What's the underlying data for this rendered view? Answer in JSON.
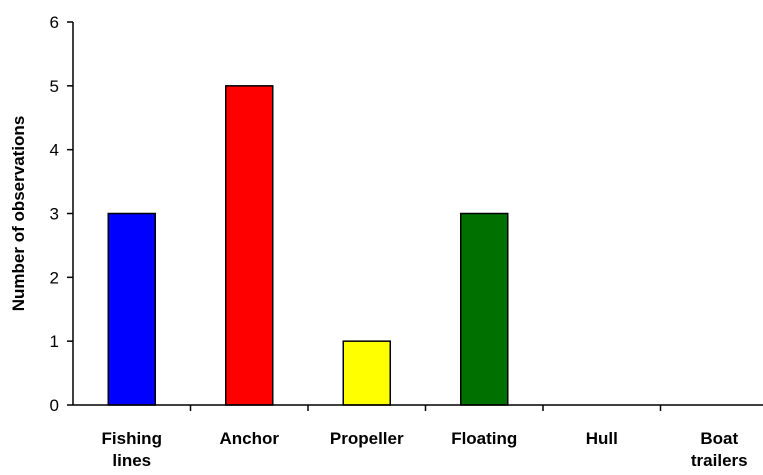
{
  "chart_data": {
    "type": "bar",
    "title": "",
    "xlabel": "",
    "ylabel": "Number of observations",
    "ylim": [
      0,
      6
    ],
    "yticks": [
      0,
      1,
      2,
      3,
      4,
      5,
      6
    ],
    "grid": false,
    "legend": "none",
    "categories": [
      [
        "Fishing",
        "lines"
      ],
      [
        "Anchor"
      ],
      [
        "Propeller"
      ],
      [
        "Floating"
      ],
      [
        "Hull"
      ],
      [
        "Boat",
        "trailers"
      ]
    ],
    "values": [
      3,
      5,
      1,
      3,
      0,
      0
    ],
    "colors": [
      "#0000ff",
      "#ff0000",
      "#ffff00",
      "#007000",
      "#ffffff",
      "#ffffff"
    ]
  }
}
